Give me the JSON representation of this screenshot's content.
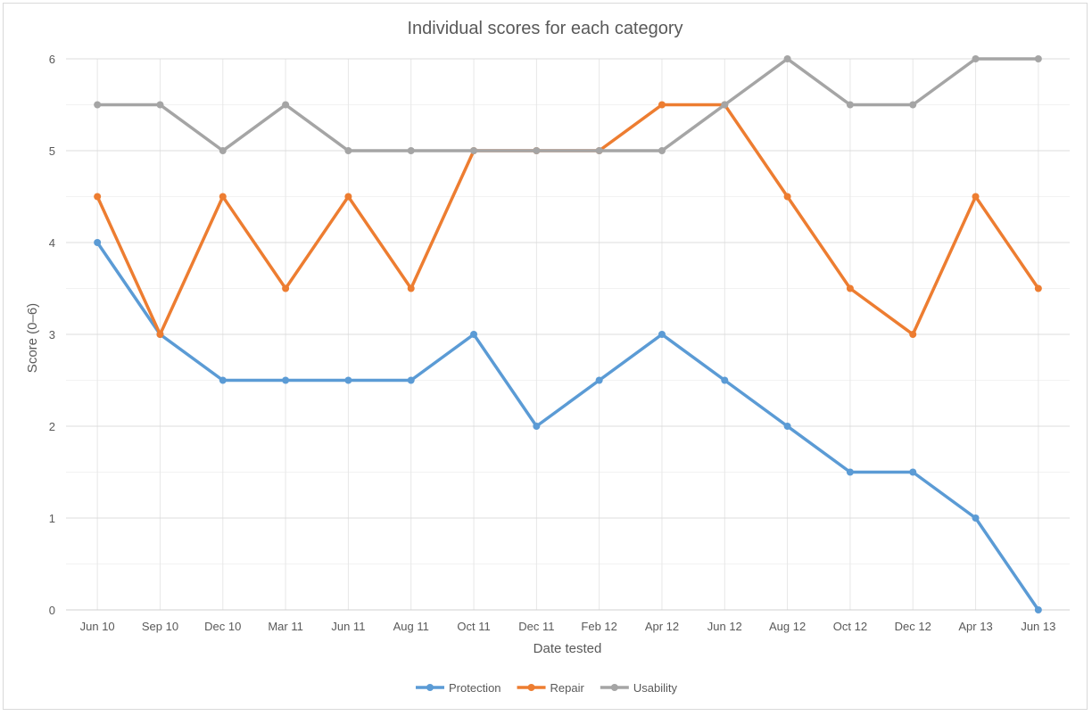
{
  "chart_data": {
    "type": "line",
    "title": "Individual scores for each category",
    "xlabel": "Date tested",
    "ylabel": "Score (0–6)",
    "ylim": [
      0,
      6
    ],
    "ytick_step": 1,
    "minor_grid_step": 0.5,
    "categories": [
      "Jun 10",
      "Sep 10",
      "Dec 10",
      "Mar 11",
      "Jun 11",
      "Aug 11",
      "Oct 11",
      "Dec 11",
      "Feb 12",
      "Apr 12",
      "Jun 12",
      "Aug 12",
      "Oct 12",
      "Dec 12",
      "Apr 13",
      "Jun 13"
    ],
    "series": [
      {
        "name": "Protection",
        "color": "#5b9bd5",
        "values": [
          4,
          3,
          2.5,
          2.5,
          2.5,
          2.5,
          3,
          2,
          2.5,
          3,
          2.5,
          2,
          1.5,
          1.5,
          1,
          0
        ]
      },
      {
        "name": "Repair",
        "color": "#ed7d31",
        "values": [
          4.5,
          3,
          4.5,
          3.5,
          4.5,
          3.5,
          5,
          5,
          5,
          5.5,
          5.5,
          4.5,
          3.5,
          3,
          4.5,
          3.5
        ]
      },
      {
        "name": "Usability",
        "color": "#a5a5a5",
        "values": [
          5.5,
          5.5,
          5,
          5.5,
          5,
          5,
          5,
          5,
          5,
          5,
          5.5,
          6,
          5.5,
          5.5,
          6,
          6
        ]
      }
    ],
    "legend_position": "bottom",
    "grid": true
  }
}
